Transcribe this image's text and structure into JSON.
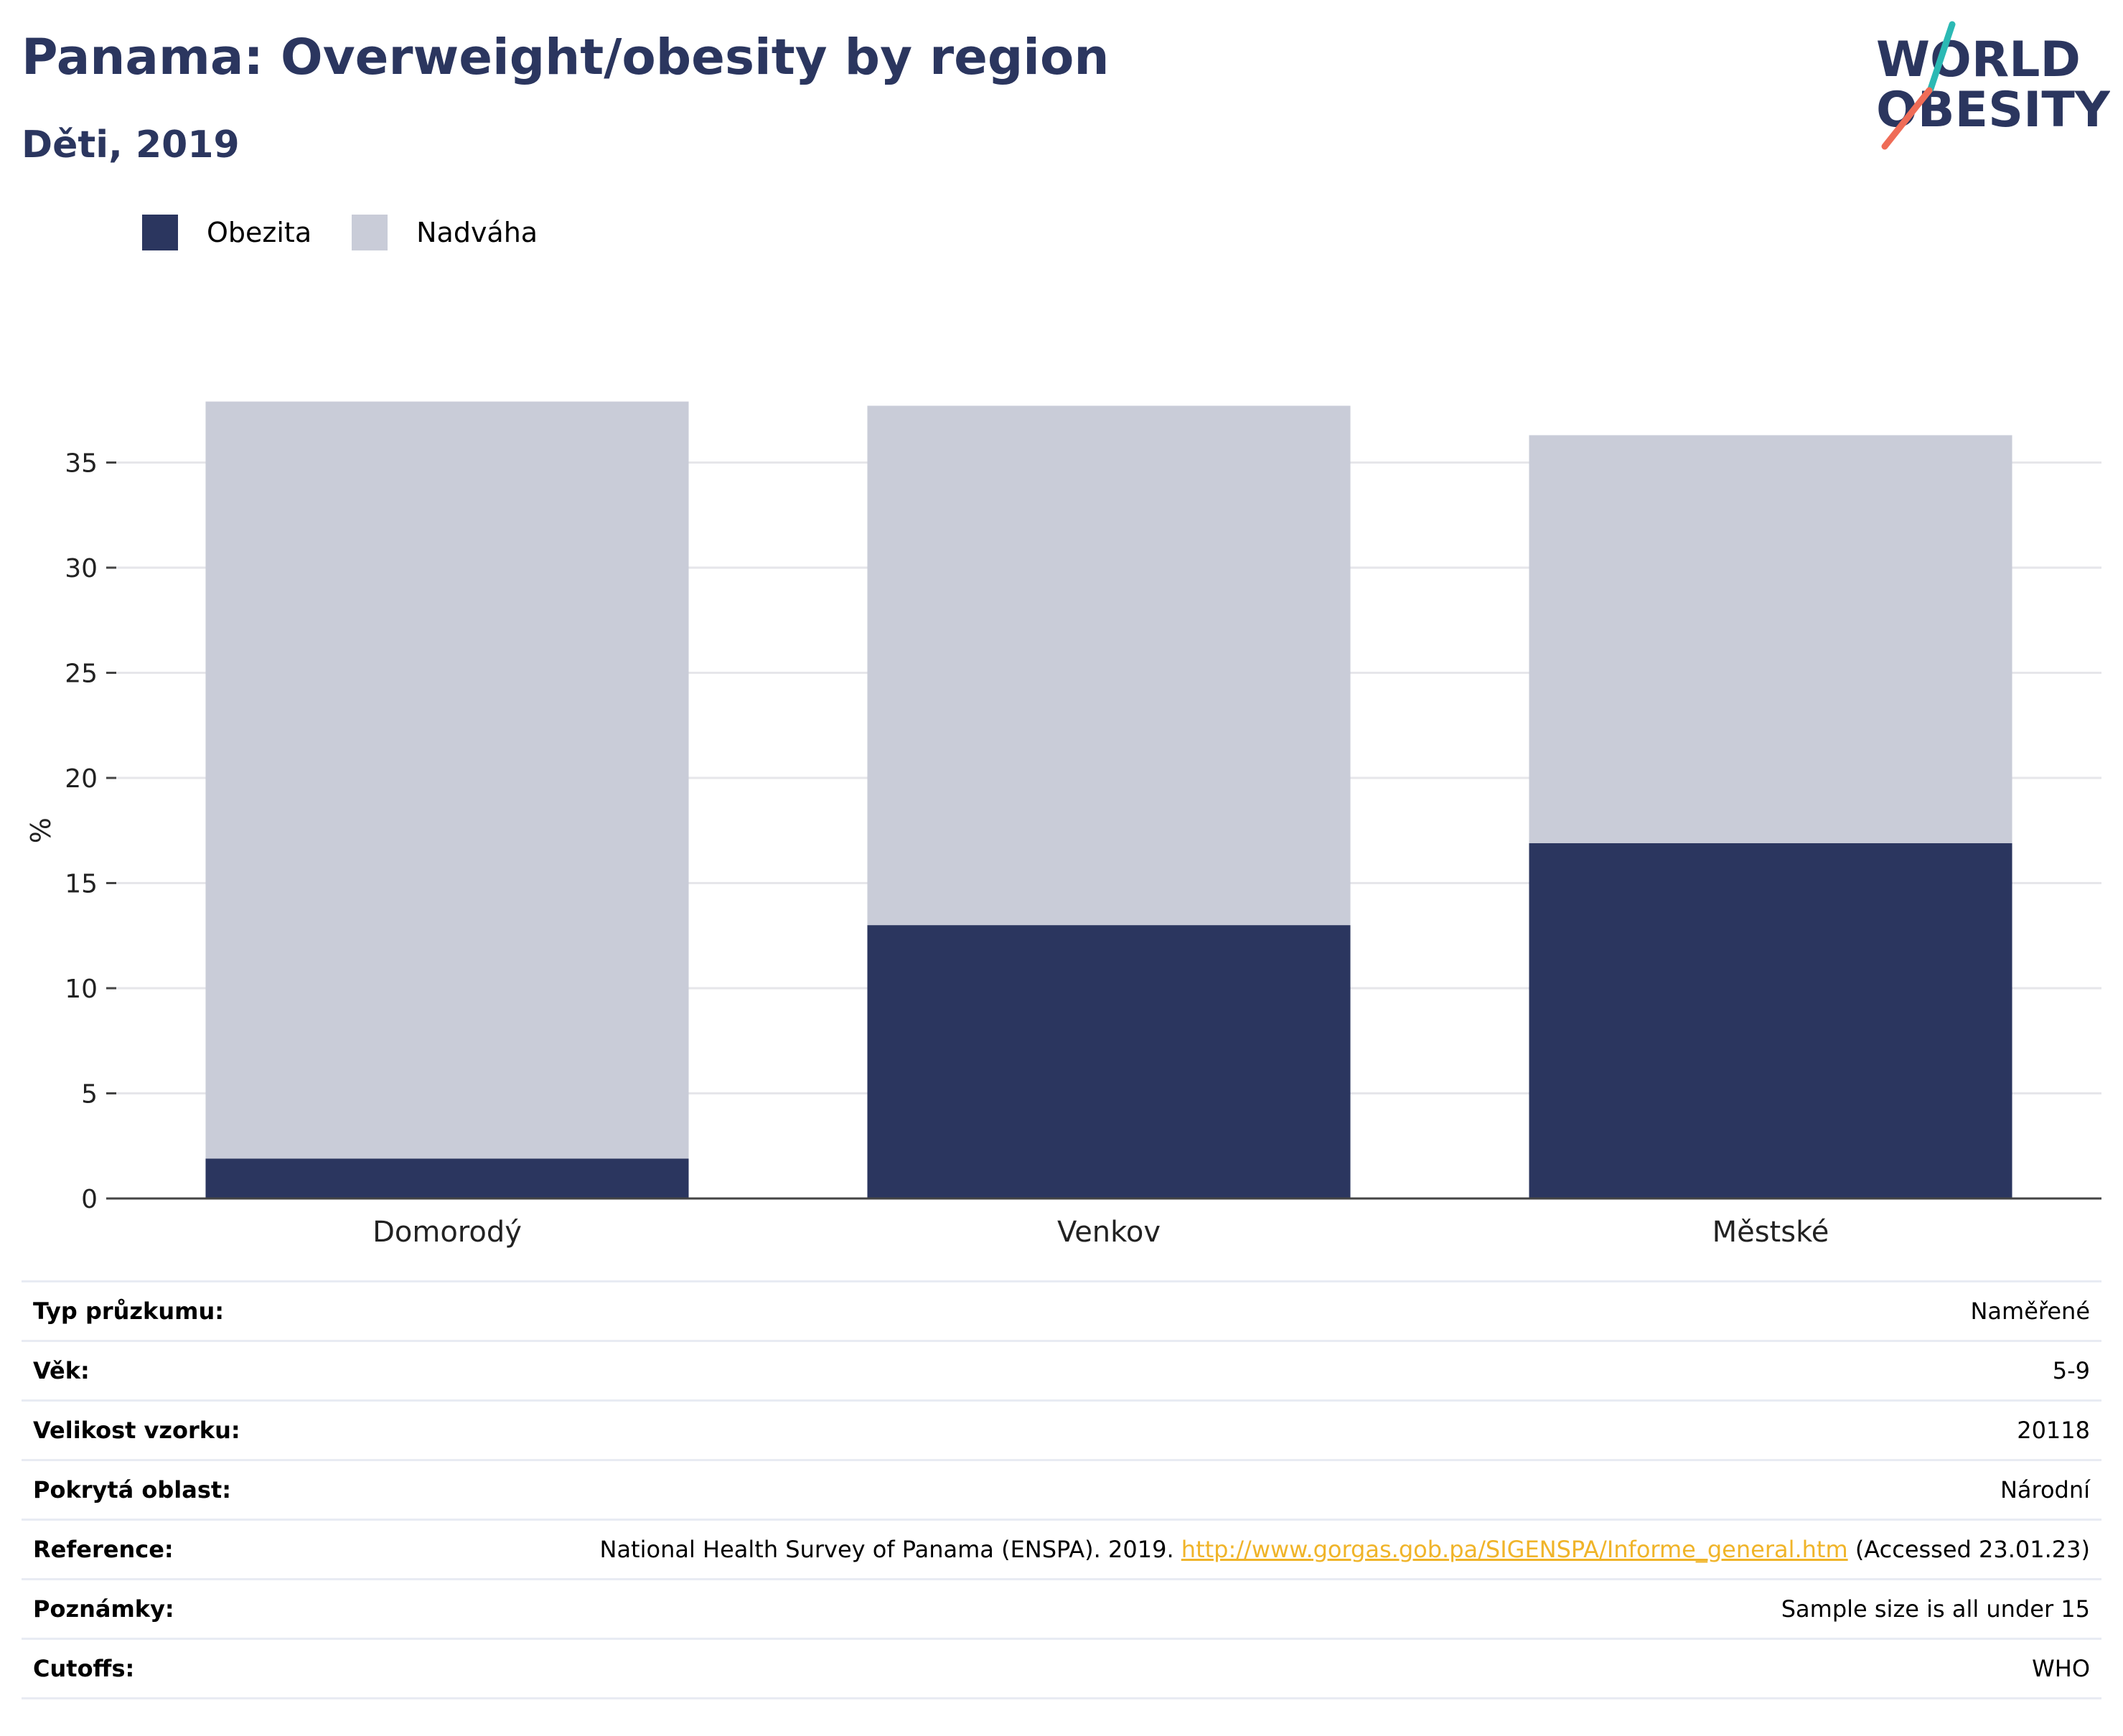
{
  "header": {
    "title": "Panama: Overweight/obesity by region",
    "subtitle": "Děti, 2019"
  },
  "logo": {
    "line1": "WORLD",
    "line2": "OBESITY",
    "colors": {
      "text": "#2b365f",
      "slash_top": "#2bb9b4",
      "slash_bottom": "#ef6c57"
    }
  },
  "legend": [
    {
      "label": "Obezita",
      "color": "#2b365f"
    },
    {
      "label": "Nadváha",
      "color": "#c9ccd8"
    }
  ],
  "chart_data": {
    "type": "bar",
    "stacked": true,
    "categories": [
      "Domorodý",
      "Venkov",
      "Městské"
    ],
    "series": [
      {
        "name": "Obezita",
        "values": [
          1.9,
          13.0,
          16.9
        ],
        "color": "#2b365f"
      },
      {
        "name": "Nadváha",
        "values": [
          36.0,
          24.7,
          19.4
        ],
        "color": "#c9ccd8"
      }
    ],
    "ylabel": "%",
    "xlabel": "",
    "ylim": [
      0,
      40
    ],
    "yticks": [
      0,
      5,
      10,
      15,
      20,
      25,
      30,
      35
    ],
    "grid": true,
    "legend_position": "top-left"
  },
  "info": {
    "rows": [
      {
        "key": "Typ průzkumu:",
        "value": "Naměřené"
      },
      {
        "key": "Věk:",
        "value": "5-9"
      },
      {
        "key": "Velikost vzorku:",
        "value": "20118"
      },
      {
        "key": "Pokrytá oblast:",
        "value": "Národní"
      },
      {
        "key": "Reference:",
        "value_pre": "National Health Survey of Panama (ENSPA). 2019. ",
        "value_link": "http://www.gorgas.gob.pa/SIGENSPA/Informe_general.htm",
        "value_post": " (Accessed 23.01.23)"
      },
      {
        "key": "Poznámky:",
        "value": "Sample size is all under 15"
      },
      {
        "key": "Cutoffs:",
        "value": "WHO"
      }
    ]
  }
}
